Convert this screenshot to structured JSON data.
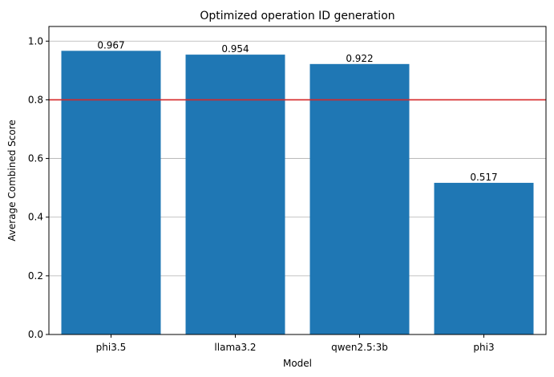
{
  "chart_data": {
    "type": "bar",
    "title": "Optimized operation ID generation",
    "xlabel": "Model",
    "ylabel": "Average Combined Score",
    "categories": [
      "phi3.5",
      "llama3.2",
      "qwen2.5:3b",
      "phi3"
    ],
    "values": [
      0.967,
      0.954,
      0.922,
      0.517
    ],
    "data_labels": [
      "0.967",
      "0.954",
      "0.922",
      "0.517"
    ],
    "ylim": [
      0,
      1.05
    ],
    "yticks": [
      0.0,
      0.2,
      0.4,
      0.6,
      0.8,
      1.0
    ],
    "ytick_labels": [
      "0.0",
      "0.2",
      "0.4",
      "0.6",
      "0.8",
      "1.0"
    ],
    "threshold": 0.8,
    "grid": "y",
    "bar_color": "#1f77b4",
    "threshold_color": "#d62728"
  }
}
